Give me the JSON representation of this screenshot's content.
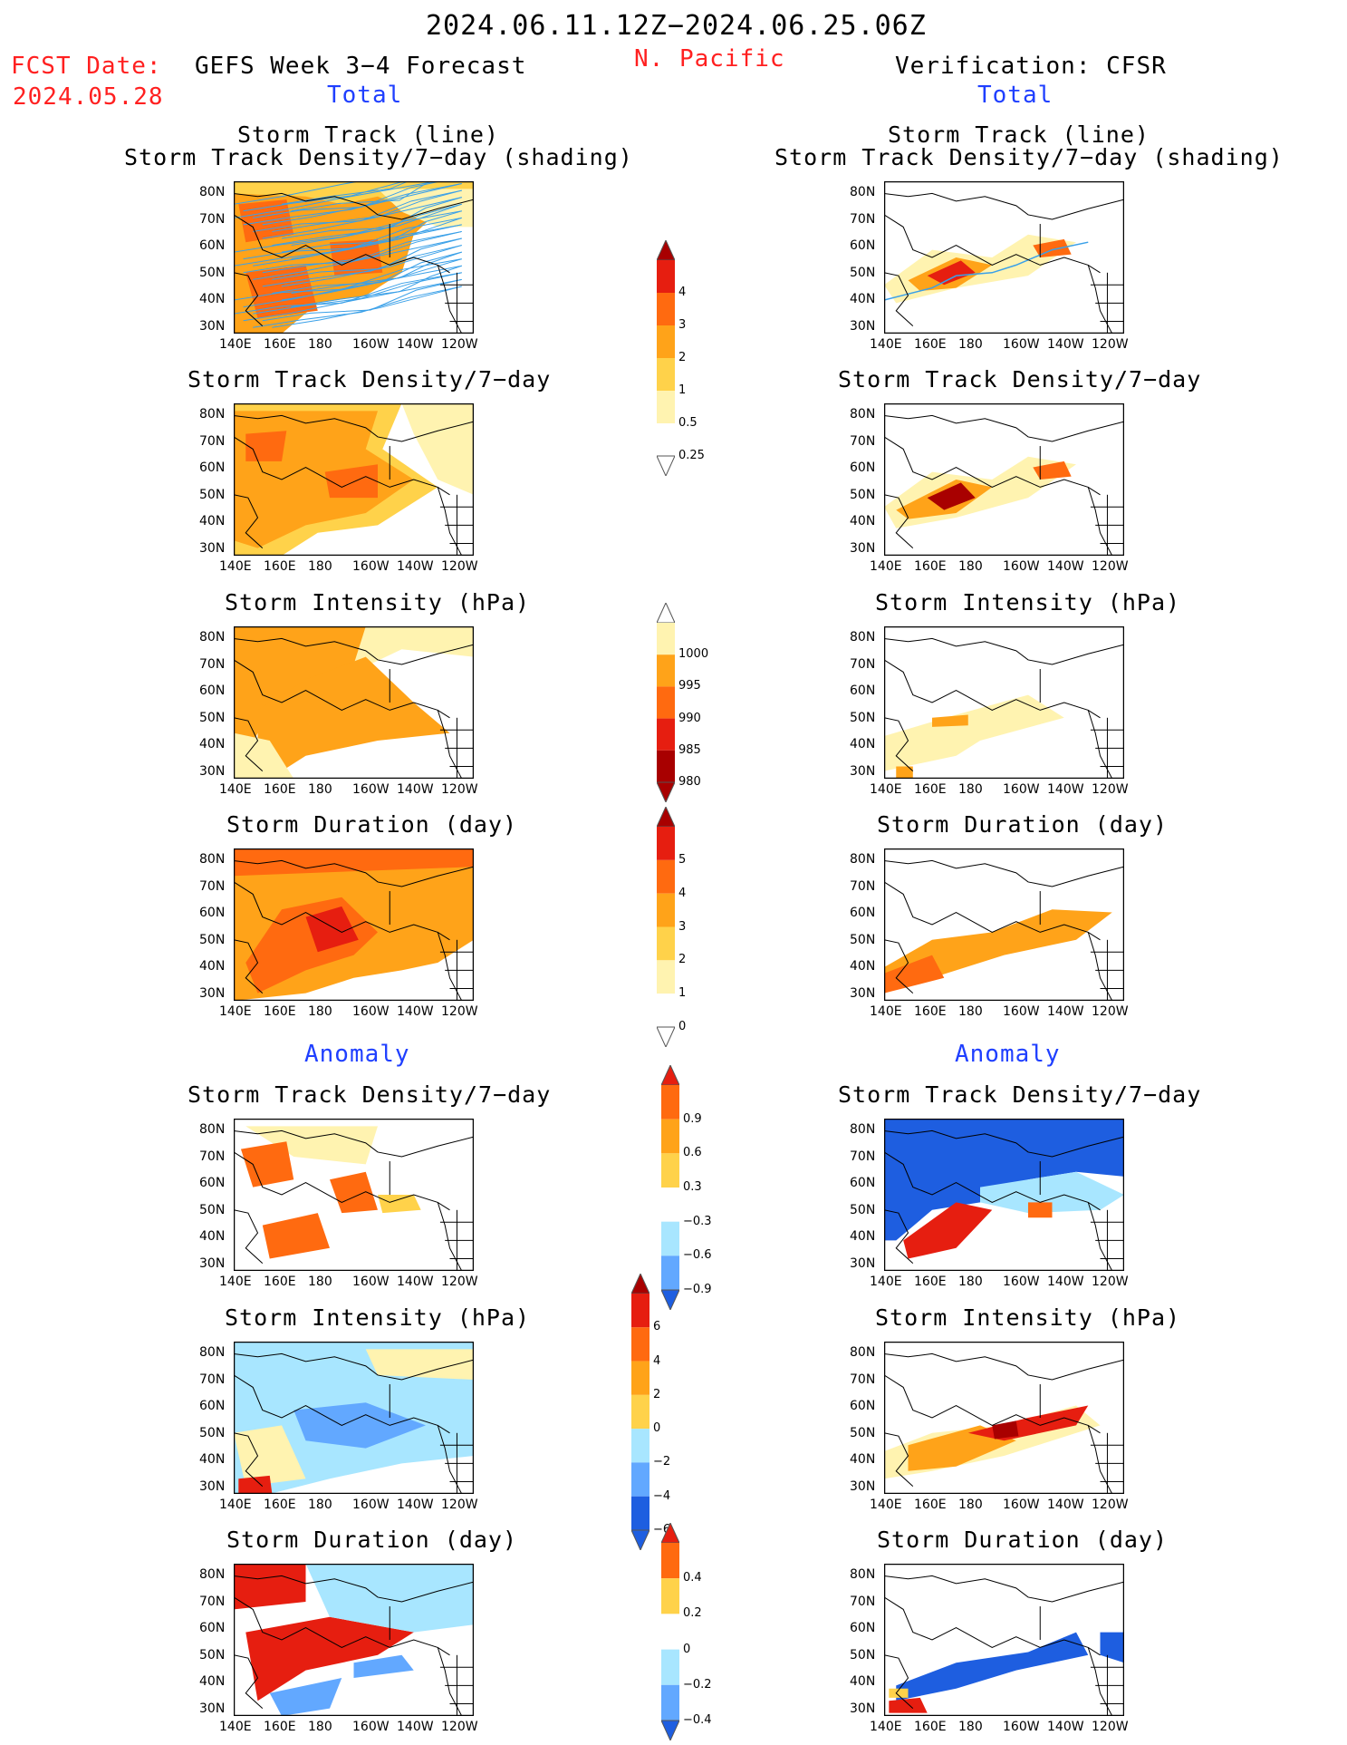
{
  "header": {
    "date_range": "2024.06.11.12Z−2024.06.25.06Z",
    "fcst_label": "FCST Date:",
    "fcst_date": "2024.05.28",
    "left_title": "GEFS Week 3−4 Forecast",
    "region": "N. Pacific",
    "right_title": "Verification: CFSR",
    "total_left": "Total",
    "total_right": "Total",
    "anomaly_left": "Anomaly",
    "anomaly_right": "Anomaly"
  },
  "panel_titles": {
    "track_line": "Storm Track (line)",
    "track_density_shading": "Storm Track Density/7−day (shading)",
    "track_density": "Storm Track Density/7−day",
    "intensity": "Storm Intensity (hPa)",
    "duration": "Storm Duration (day)"
  },
  "axes": {
    "lat_labels": [
      "80N",
      "70N",
      "60N",
      "50N",
      "40N",
      "30N"
    ],
    "lon_labels": [
      "140E",
      "160E",
      "180",
      "160W",
      "140W",
      "120W"
    ]
  },
  "colorbars": {
    "density": [
      "4",
      "3",
      "2",
      "1",
      "0.5",
      "0.25"
    ],
    "intensity": [
      "1000",
      "995",
      "990",
      "985",
      "980"
    ],
    "duration": [
      "5",
      "4",
      "3",
      "2",
      "1",
      "0"
    ],
    "density_anom": [
      "0.9",
      "0.6",
      "0.3",
      "−0.3",
      "−0.6",
      "−0.9"
    ],
    "intensity_anom": [
      "6",
      "4",
      "2",
      "0",
      "−2",
      "−4",
      "−6"
    ],
    "duration_anom": [
      "0.4",
      "0.2",
      "0",
      "−0.2",
      "−0.4"
    ]
  },
  "colors": {
    "title_red": "#ff2020",
    "label_blue": "#1f3fff",
    "pale_yellow": "#fff3b0",
    "light_orange": "#ffd24a",
    "orange": "#ffa319",
    "dark_orange": "#ff6a10",
    "red": "#e61e10",
    "dark_red": "#a80000",
    "light_blue": "#a8e6ff",
    "mid_blue": "#62a8ff",
    "dark_blue": "#1e5ee0",
    "track_blue": "#3aa0e8"
  }
}
